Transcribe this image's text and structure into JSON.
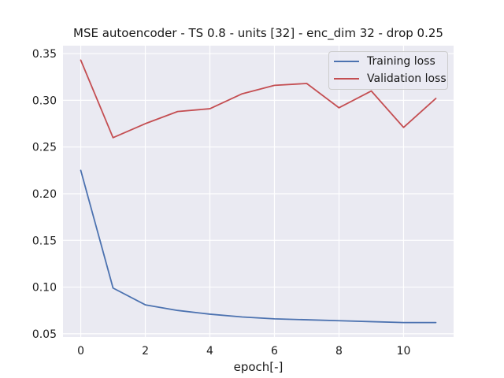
{
  "chart_data": {
    "type": "line",
    "title": "MSE autoencoder - TS 0.8 - units [32] - enc_dim 32 - drop 0.25",
    "xlabel": "epoch[-]",
    "ylabel": "",
    "x": [
      0,
      1,
      2,
      3,
      4,
      5,
      6,
      7,
      8,
      9,
      10,
      11
    ],
    "xticks": [
      0,
      2,
      4,
      6,
      8,
      10
    ],
    "xtick_labels": [
      "0",
      "2",
      "4",
      "6",
      "8",
      "10"
    ],
    "yticks": [
      0.05,
      0.1,
      0.15,
      0.2,
      0.25,
      0.3,
      0.35
    ],
    "ytick_labels": [
      "0.05",
      "0.10",
      "0.15",
      "0.20",
      "0.25",
      "0.30",
      "0.35"
    ],
    "xlim": [
      -0.55,
      11.55
    ],
    "ylim": [
      0.0465,
      0.3585
    ],
    "grid": true,
    "legend_position": "top-right",
    "background_color": "#eaeaf2",
    "grid_color": "#ffffff",
    "series": [
      {
        "name": "Training loss",
        "color": "#4c72b0",
        "values": [
          0.225,
          0.099,
          0.081,
          0.075,
          0.071,
          0.068,
          0.066,
          0.065,
          0.064,
          0.063,
          0.062,
          0.062
        ]
      },
      {
        "name": "Validation loss",
        "color": "#c44e52",
        "values": [
          0.343,
          0.26,
          0.275,
          0.288,
          0.291,
          0.307,
          0.316,
          0.318,
          0.292,
          0.31,
          0.271,
          0.302
        ]
      }
    ]
  }
}
